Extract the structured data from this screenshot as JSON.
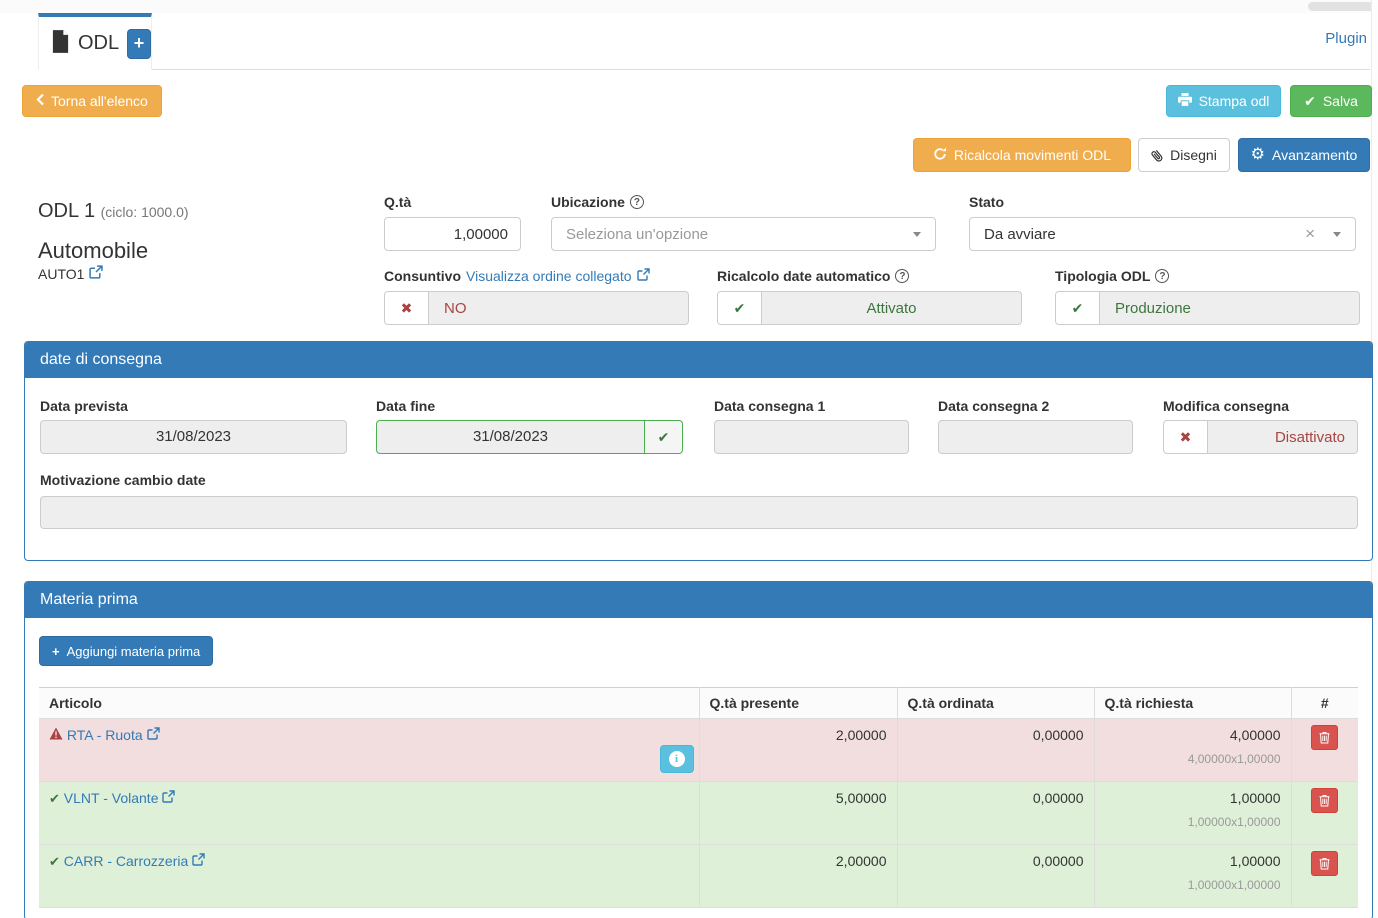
{
  "page": {
    "tab_title": "ODL",
    "plugin_link": "Plugin"
  },
  "toolbar": {
    "back_label": "Torna all'elenco",
    "print_label": "Stampa odl",
    "save_label": "Salva",
    "recalc_label": "Ricalcola movimenti ODL",
    "drawings_label": "Disegni",
    "progress_label": "Avanzamento",
    "add_tab_label": "+"
  },
  "order": {
    "title": "ODL 1",
    "cycle": "(ciclo: 1000.0)",
    "product_name": "Automobile",
    "product_code": "AUTO1"
  },
  "fields": {
    "qty": {
      "label": "Q.tà",
      "value": "1,00000"
    },
    "location": {
      "label": "Ubicazione",
      "placeholder": "Seleziona un'opzione"
    },
    "status": {
      "label": "Stato",
      "value": "Da avviare"
    },
    "consuntivo": {
      "label": "Consuntivo",
      "link": "Visualizza ordine collegato",
      "value": "NO"
    },
    "recalc_dates": {
      "label": "Ricalcolo date automatico",
      "value": "Attivato"
    },
    "odl_type": {
      "label": "Tipologia ODL",
      "value": "Produzione"
    }
  },
  "dates_panel": {
    "title": "date di consegna",
    "expected_date": {
      "label": "Data prevista",
      "value": "31/08/2023"
    },
    "end_date": {
      "label": "Data fine",
      "value": "31/08/2023"
    },
    "delivery_date_1": {
      "label": "Data consegna 1",
      "value": ""
    },
    "delivery_date_2": {
      "label": "Data consegna 2",
      "value": ""
    },
    "delivery_change": {
      "label": "Modifica consegna",
      "value": "Disattivato"
    },
    "change_reason": {
      "label": "Motivazione cambio date",
      "value": ""
    }
  },
  "materials_panel": {
    "title": "Materia prima",
    "add_button": "Aggiungi materia prima",
    "table": {
      "headers": [
        "Articolo",
        "Q.tà presente",
        "Q.tà ordinata",
        "Q.tà richiesta",
        "#"
      ],
      "rows": [
        {
          "article": "RTA - Ruota",
          "status": "warning",
          "present": "2,00000",
          "ordered": "0,00000",
          "required": "4,00000",
          "required_detail": "4,00000x1,00000",
          "has_info": true
        },
        {
          "article": "VLNT - Volante",
          "status": "ok",
          "present": "5,00000",
          "ordered": "0,00000",
          "required": "1,00000",
          "required_detail": "1,00000x1,00000",
          "has_info": false
        },
        {
          "article": "CARR - Carrozzeria",
          "status": "ok",
          "present": "2,00000",
          "ordered": "0,00000",
          "required": "1,00000",
          "required_detail": "1,00000x1,00000",
          "has_info": false
        }
      ]
    }
  },
  "icons": {
    "file-icon": "document page",
    "plus-icon": "+",
    "chevron-left-icon": "‹",
    "printer-icon": "printer",
    "check-icon": "✔",
    "cross-icon": "✖",
    "refresh-icon": "circular arrow",
    "paperclip-icon": "paperclip",
    "gear-icon": "⚙",
    "question-circle-icon": "?",
    "caret-down-icon": "▼",
    "clear-x-icon": "×",
    "external-link-icon": "box with arrow",
    "warning-icon": "⚠",
    "info-icon": "i in circle",
    "trash-icon": "trash can"
  },
  "colors": {
    "primary": "#337ab7",
    "warning": "#f0ad4e",
    "info": "#5bc0de",
    "success": "#5cb85c",
    "danger": "#d9534f",
    "danger_text": "#a94442",
    "success_text": "#3c763d",
    "danger_row_bg": "#f2dede",
    "success_row_bg": "#dff0d8"
  }
}
